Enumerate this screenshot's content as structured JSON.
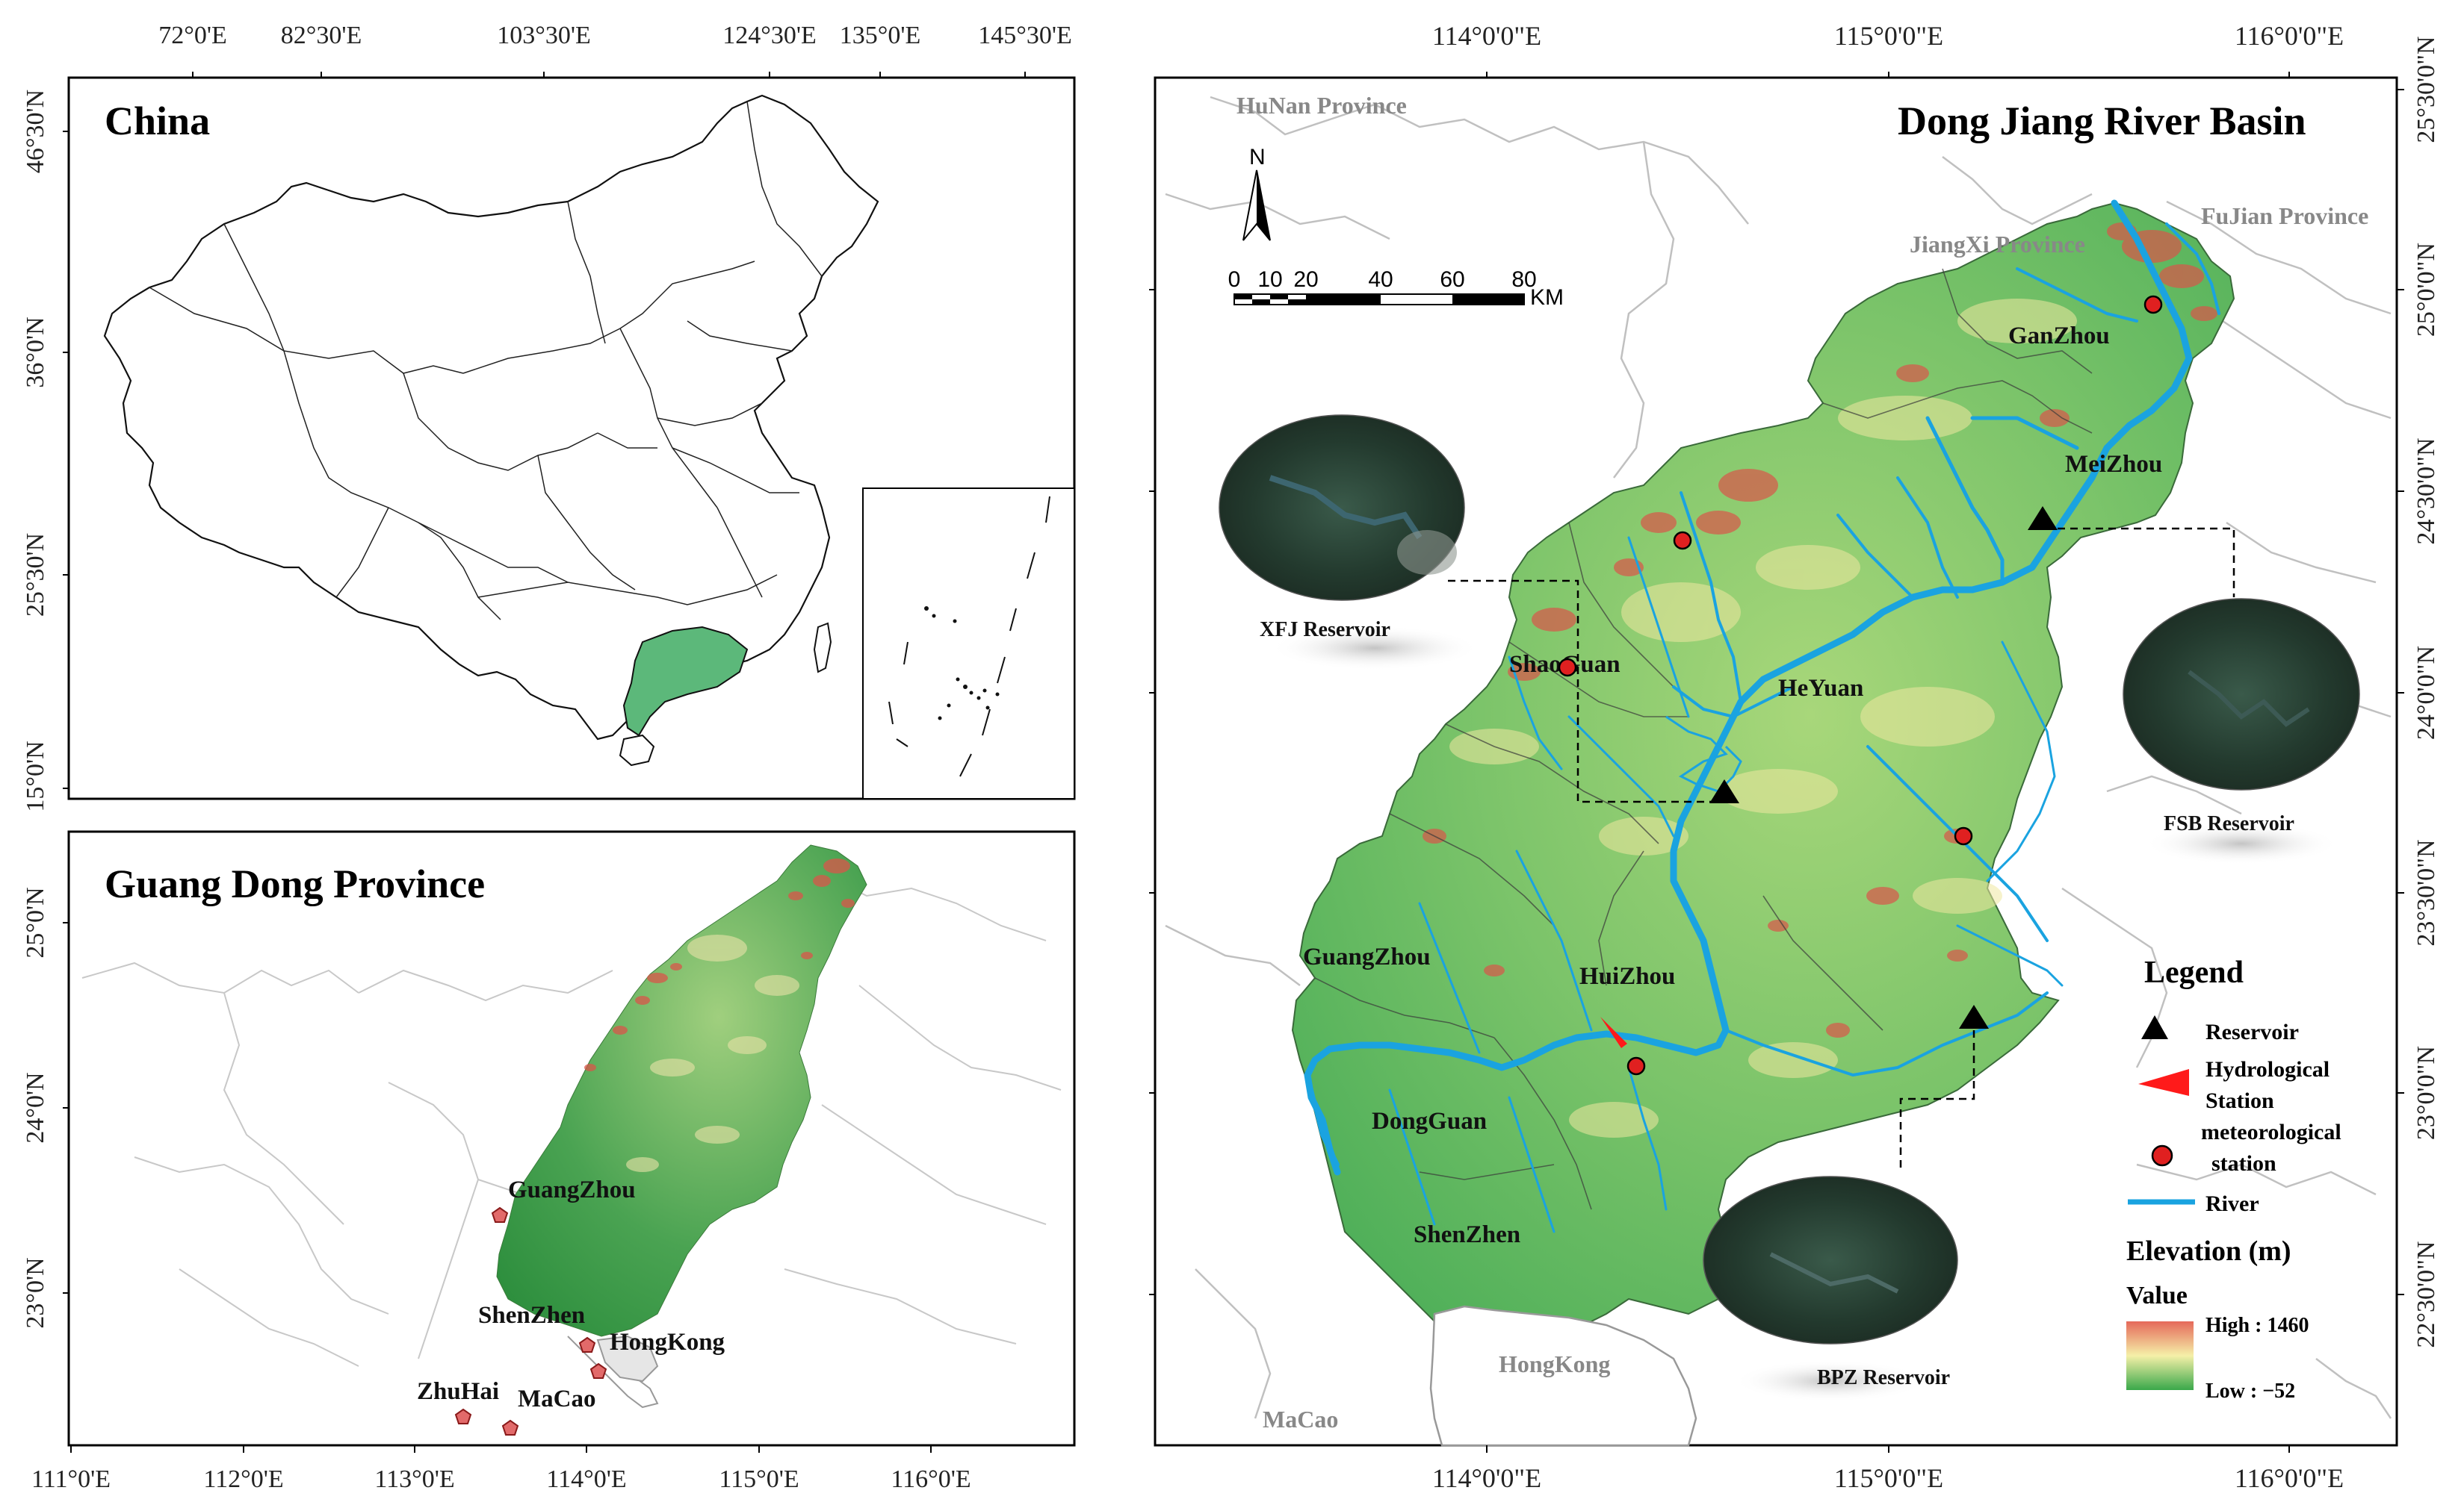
{
  "panel_china": {
    "title": "China",
    "top_ticks": [
      "72°0'E",
      "82°30'E",
      "103°30'E",
      "124°30'E",
      "135°0'E",
      "145°30'E"
    ],
    "left_ticks": [
      "46°30'N",
      "36°0'N",
      "25°30'N",
      "15°0'N"
    ]
  },
  "panel_guangdong": {
    "title": "Guang Dong  Province",
    "bottom_ticks": [
      "111°0'E",
      "112°0'E",
      "113°0'E",
      "114°0'E",
      "115°0'E",
      "116°0'E"
    ],
    "left_ticks": [
      "25°0'N",
      "24°0'N",
      "23°0'N"
    ],
    "cities": [
      "GuangZhou",
      "ShenZhen",
      "HongKong",
      "ZhuHai",
      "MaCao"
    ]
  },
  "panel_basin": {
    "title": "Dong Jiang River Basin",
    "top_ticks": [
      "114°0'0\"E",
      "115°0'0\"E",
      "116°0'0\"E"
    ],
    "bottom_ticks": [
      "114°0'0\"E",
      "115°0'0\"E",
      "116°0'0\"E"
    ],
    "right_ticks": [
      "25°30'0\"N",
      "25°0'0\"N",
      "24°30'0\"N",
      "24°0'0\"N",
      "23°30'0\"N",
      "23°0'0\"N",
      "22°30'0\"N"
    ],
    "provinces": [
      "HuNan Province",
      "JiangXi Province",
      "FuJian Province",
      "HongKong",
      "MaCao"
    ],
    "cities": [
      "GanZhou",
      "MeiZhou",
      "ShaoGuan",
      "HeYuan",
      "GuangZhou",
      "HuiZhou",
      "DongGuan",
      "ShenZhen"
    ],
    "reservoirs": [
      "XFJ Reservoir",
      "FSB Reservoir",
      "BPZ Reservoir"
    ],
    "north_arrow": "N",
    "scale_labels": [
      "0",
      "10",
      "20",
      "40",
      "60",
      "80"
    ],
    "scale_unit": "KM"
  },
  "legend": {
    "title": "Legend",
    "reservoir": "Reservoir",
    "hydro_line1": "Hydrological",
    "hydro_line2": "Station",
    "meteo_line1": "meteorological",
    "meteo_line2": "station",
    "river": "River",
    "elevation_title": "Elevation (m)",
    "value_label": "Value",
    "high_label": "High :  1460",
    "low_label": "Low :   −52"
  },
  "colors": {
    "river": "#1aa3e0",
    "guangdong_fill": "#5cb87a",
    "reservoir_marker": "#000000",
    "meteo_marker": "#e02020",
    "hydro_marker": "#ff1a1a",
    "elev_high": "#e5695a",
    "elev_mid": "#f5f0a8",
    "elev_low": "#3aa84a"
  }
}
